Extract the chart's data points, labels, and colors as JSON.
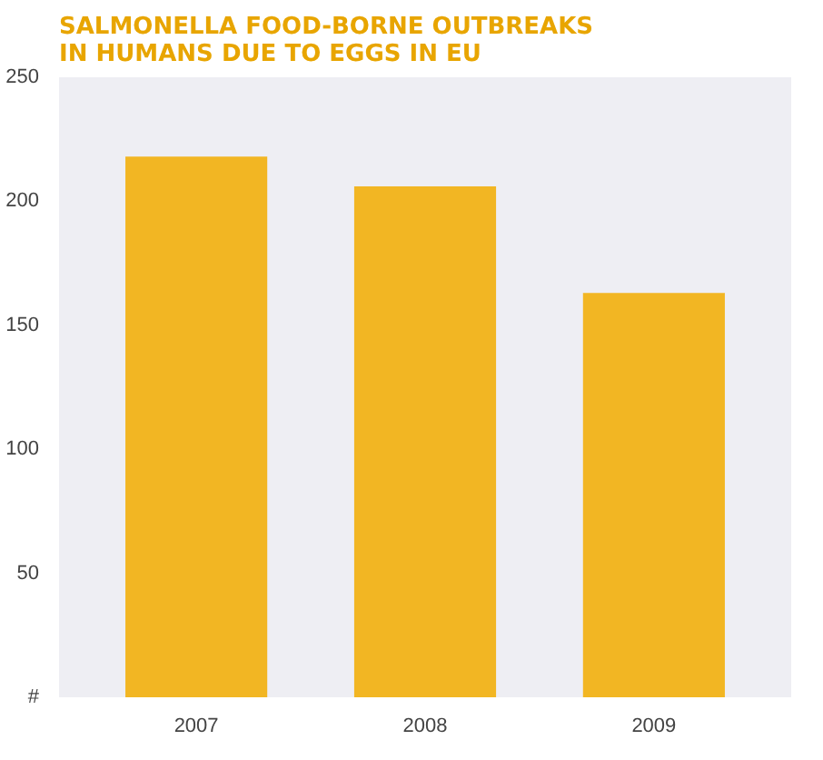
{
  "chart_data": {
    "type": "bar",
    "title": "SALMONELLA FOOD-BORNE OUTBREAKS\nIN HUMANS DUE TO EGGS IN EU",
    "categories": [
      "2007",
      "2008",
      "2009"
    ],
    "values": [
      218,
      206,
      163
    ],
    "color": "#f2b623",
    "ylim": [
      0,
      250
    ],
    "yticks": [
      {
        "value": 0,
        "label": "#"
      },
      50,
      100,
      150,
      200,
      250
    ]
  }
}
